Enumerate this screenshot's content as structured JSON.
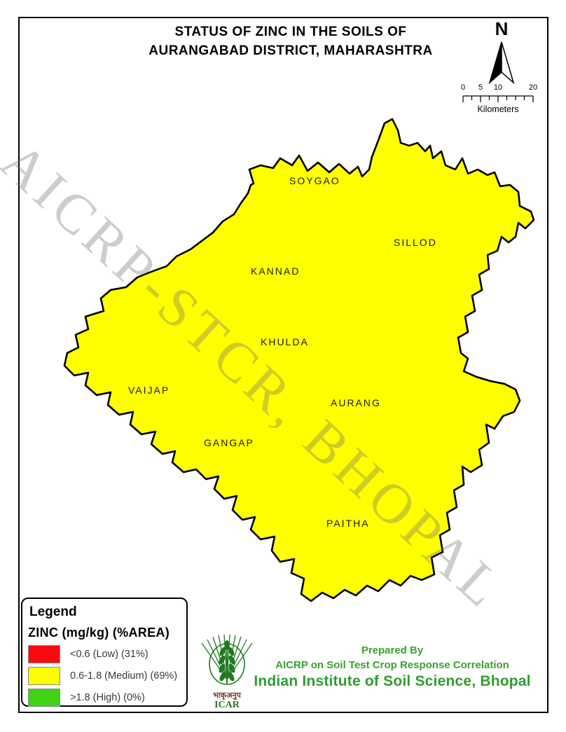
{
  "title": {
    "line1": "STATUS OF ZINC IN THE SOILS OF",
    "line2": "AURANGABAD DISTRICT, MAHARASHTRA"
  },
  "north_arrow": {
    "label": "N"
  },
  "scale_bar": {
    "tick_labels": [
      "0",
      "5",
      "10",
      "20"
    ],
    "unit_label": "Kilometers"
  },
  "watermark": {
    "text": "AICRP-STCR, BHOPAL"
  },
  "map": {
    "district": "AURANGABAD",
    "region_labels": [
      "SOYGAO",
      "SILLOD",
      "KANNAD",
      "KHULDA",
      "VAIJAP",
      "AURANG",
      "GANGAP",
      "PAITHA"
    ]
  },
  "legend": {
    "heading": "Legend",
    "subheading": "ZINC (mg/kg) (%AREA)",
    "items": [
      {
        "label": "<0.6 (Low) (31%)",
        "range": "<0.6",
        "class": "Low",
        "percent_area": "31%",
        "color": "#FA0A0F"
      },
      {
        "label": "0.6-1.8 (Medium) (69%)",
        "range": "0.6-1.8",
        "class": "Medium",
        "percent_area": "69%",
        "color": "#FFFF00"
      },
      {
        "label": ">1.8 (High) (0%)",
        "range": ">1.8",
        "class": "High",
        "percent_area": "0%",
        "color": "#3FD316"
      }
    ]
  },
  "attribution": {
    "prepared_by": "Prepared By",
    "organization": "AICRP on Soil Test Crop Response Correlation",
    "institute": "Indian Institute of Soil Science, Bhopal",
    "logo_text_hindi": "भाकृअनुप",
    "logo_text": "ICAR"
  },
  "colors": {
    "map_low_red": "#FA0A0F",
    "map_medium_yellow": "#FFFF00",
    "legend_high_green": "#3FD316",
    "sample_point": "#3D2073",
    "boundary": "#000000",
    "watermark_gray": "#C8C8C8",
    "attribution_green": "#38A32E",
    "logo_green": "#1F7A1F",
    "logo_hindi_maroon": "#7B3B2B"
  }
}
